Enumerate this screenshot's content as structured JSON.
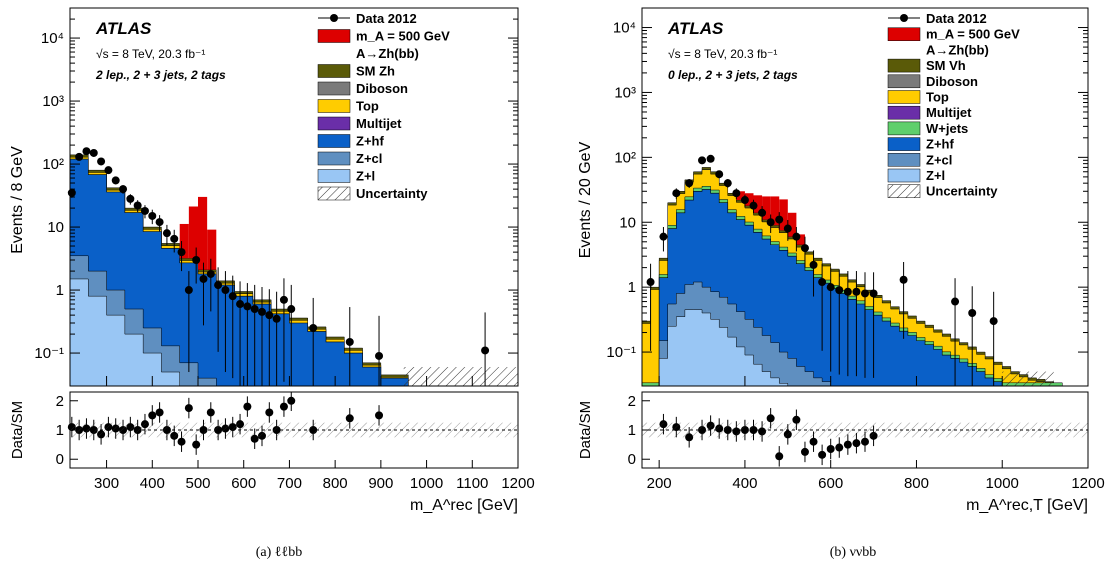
{
  "chart_data": [
    {
      "type": "area",
      "panel_caption": "(a) ℓℓbb",
      "experiment": "ATLAS",
      "energy_text": "√s = 8 TeV, 20.3 fb⁻¹",
      "selection": "2 lep., 2 + 3 jets, 2 tags",
      "xlabel": "m_A^rec [GeV]",
      "ylabel": "Events / 8 GeV",
      "ratio_ylabel": "Data/SM",
      "log_y": true,
      "xlim": [
        220,
        1200
      ],
      "ylim": [
        0.03,
        30000
      ],
      "ratio_ylim": [
        -0.3,
        2.3
      ],
      "x_ticks": [
        300,
        400,
        500,
        600,
        700,
        800,
        900,
        1000,
        1100,
        1200
      ],
      "y_ticks": [
        "10⁻¹",
        "1",
        "10",
        "10²",
        "10³",
        "10⁴"
      ],
      "ratio_ticks": [
        "0",
        "1",
        "2"
      ],
      "legend": [
        "Data 2012",
        "m_A = 500 GeV",
        "A→Zh(bb)",
        "SM Zh",
        "Diboson",
        "Top",
        "Multijet",
        "Z+hf",
        "Z+cl",
        "Z+l",
        "Uncertainty"
      ],
      "stack": {
        "x": [
          240,
          280,
          320,
          360,
          400,
          440,
          480,
          520,
          560,
          600,
          640,
          680,
          720,
          760,
          800,
          840,
          880,
          920,
          1000,
          1100
        ],
        "total": [
          140,
          80,
          42,
          20,
          10,
          5.5,
          3.2,
          2.1,
          1.4,
          0.95,
          0.7,
          0.5,
          0.36,
          0.26,
          0.18,
          0.12,
          0.07,
          0.045,
          0.03,
          0.03
        ],
        "z_hf": [
          120,
          68,
          36,
          17,
          8.5,
          4.6,
          2.7,
          1.8,
          1.2,
          0.8,
          0.6,
          0.42,
          0.3,
          0.22,
          0.15,
          0.1,
          0.06,
          0.04,
          0.03,
          0.03
        ],
        "z_cl": [
          3.5,
          2.0,
          1.0,
          0.5,
          0.25,
          0.13,
          0.07,
          0.04,
          0.03,
          0.03,
          0.03,
          0.03,
          0.03,
          0.03,
          0.03,
          0.03,
          0.03,
          0.03,
          0.03,
          0.03
        ],
        "z_l": [
          1.5,
          0.8,
          0.4,
          0.2,
          0.1,
          0.05,
          0.03,
          0.03,
          0.03,
          0.03,
          0.03,
          0.03,
          0.03,
          0.03,
          0.03,
          0.03,
          0.03,
          0.03,
          0.03,
          0.03
        ]
      },
      "signal": {
        "mass": 500,
        "x": [
          470,
          490,
          510,
          530
        ],
        "values": [
          8,
          18,
          28,
          7
        ]
      },
      "data_points": {
        "x": [
          224,
          240,
          256,
          272,
          288,
          304,
          320,
          336,
          352,
          368,
          384,
          400,
          416,
          432,
          448,
          464,
          480,
          496,
          512,
          528,
          544,
          560,
          576,
          592,
          608,
          624,
          640,
          656,
          672,
          688,
          704,
          752,
          832,
          896,
          1128
        ],
        "y": [
          35,
          130,
          160,
          150,
          110,
          80,
          55,
          40,
          28,
          22,
          18,
          15,
          12,
          8,
          6.5,
          4,
          1,
          3,
          1.5,
          1.8,
          1.2,
          1.0,
          0.8,
          0.6,
          0.55,
          0.5,
          0.45,
          0.4,
          0.35,
          0.7,
          0.5,
          0.25,
          0.15,
          0.09,
          0.11
        ]
      },
      "ratio": {
        "x": [
          224,
          240,
          256,
          272,
          288,
          304,
          320,
          336,
          352,
          368,
          384,
          400,
          416,
          432,
          448,
          464,
          480,
          496,
          512,
          528,
          544,
          560,
          576,
          592,
          608,
          624,
          640,
          656,
          672,
          688,
          704,
          752,
          832,
          896
        ],
        "y": [
          1.1,
          1.0,
          1.05,
          1.0,
          0.85,
          1.1,
          1.05,
          1.0,
          1.1,
          1.0,
          1.2,
          1.5,
          1.6,
          1.0,
          0.8,
          0.6,
          1.75,
          0.5,
          1.0,
          1.6,
          1.0,
          1.05,
          1.1,
          1.2,
          1.8,
          0.7,
          0.8,
          1.6,
          1.0,
          1.8,
          2.0,
          1.0,
          1.4,
          1.5
        ]
      }
    },
    {
      "type": "area",
      "panel_caption": "(b) ννbb",
      "experiment": "ATLAS",
      "energy_text": "√s = 8 TeV, 20.3 fb⁻¹",
      "selection": "0 lep., 2 + 3 jets, 2 tags",
      "xlabel": "m_A^rec,T [GeV]",
      "ylabel": "Events / 20 GeV",
      "ratio_ylabel": "Data/SM",
      "log_y": true,
      "xlim": [
        160,
        1200
      ],
      "ylim": [
        0.03,
        20000
      ],
      "ratio_ylim": [
        -0.3,
        2.3
      ],
      "x_ticks": [
        200,
        400,
        600,
        800,
        1000,
        1200
      ],
      "y_ticks": [
        "10⁻¹",
        "1",
        "10",
        "10²",
        "10³",
        "10⁴"
      ],
      "ratio_ticks": [
        "0",
        "1",
        "2"
      ],
      "legend": [
        "Data 2012",
        "m_A = 500 GeV",
        "A→Zh(bb)",
        "SM Vh",
        "Diboson",
        "Top",
        "Multijet",
        "W+jets",
        "Z+hf",
        "Z+cl",
        "Z+l",
        "Uncertainty"
      ],
      "stack": {
        "x": [
          170,
          190,
          210,
          230,
          250,
          270,
          290,
          310,
          330,
          350,
          370,
          390,
          410,
          430,
          450,
          470,
          490,
          510,
          530,
          550,
          570,
          590,
          610,
          630,
          650,
          670,
          690,
          710,
          730,
          750,
          770,
          790,
          810,
          830,
          850,
          870,
          890,
          910,
          930,
          950,
          970,
          990,
          1010,
          1030,
          1050,
          1070,
          1090,
          1110,
          1130
        ],
        "total": [
          0.3,
          1.0,
          2.8,
          20,
          30,
          45,
          60,
          70,
          60,
          40,
          28,
          22,
          18,
          14,
          11,
          9,
          7.5,
          6,
          4.5,
          3.5,
          2.8,
          2.3,
          1.9,
          1.6,
          1.3,
          1.1,
          0.9,
          0.75,
          0.62,
          0.5,
          0.42,
          0.36,
          0.3,
          0.26,
          0.22,
          0.19,
          0.16,
          0.14,
          0.12,
          0.1,
          0.085,
          0.07,
          0.06,
          0.05,
          0.045,
          0.04,
          0.038,
          0.035,
          0.033
        ],
        "z_hf": [
          0.03,
          0.03,
          1.4,
          8,
          14,
          22,
          30,
          32,
          28,
          20,
          14,
          11,
          9,
          7,
          5.5,
          4.5,
          3.7,
          3,
          2.3,
          1.8,
          1.4,
          1.15,
          0.95,
          0.8,
          0.65,
          0.55,
          0.45,
          0.37,
          0.3,
          0.25,
          0.21,
          0.18,
          0.15,
          0.13,
          0.11,
          0.09,
          0.08,
          0.07,
          0.06,
          0.05,
          0.04,
          0.035,
          0.03,
          0.03,
          0.03,
          0.03,
          0.03,
          0.03,
          0.03
        ],
        "z_cl": [
          0.03,
          0.03,
          0.15,
          0.55,
          0.8,
          1.1,
          1.2,
          1.0,
          0.85,
          0.7,
          0.55,
          0.42,
          0.32,
          0.24,
          0.18,
          0.14,
          0.1,
          0.08,
          0.06,
          0.05,
          0.04,
          0.035,
          0.03,
          0.03,
          0.03,
          0.03,
          0.03,
          0.03,
          0.03,
          0.03,
          0.03,
          0.03,
          0.03,
          0.03,
          0.03,
          0.03,
          0.03,
          0.03,
          0.03,
          0.03,
          0.03,
          0.03,
          0.03,
          0.03,
          0.03,
          0.03,
          0.03,
          0.03,
          0.03
        ],
        "z_l": [
          0.03,
          0.03,
          0.08,
          0.25,
          0.35,
          0.45,
          0.45,
          0.4,
          0.32,
          0.24,
          0.17,
          0.12,
          0.09,
          0.065,
          0.05,
          0.04,
          0.033,
          0.03,
          0.03,
          0.03,
          0.03,
          0.03,
          0.03,
          0.03,
          0.03,
          0.03,
          0.03,
          0.03,
          0.03,
          0.03,
          0.03,
          0.03,
          0.03,
          0.03,
          0.03,
          0.03,
          0.03,
          0.03,
          0.03,
          0.03,
          0.03,
          0.03,
          0.03,
          0.03,
          0.03,
          0.03,
          0.03,
          0.03,
          0.03
        ]
      },
      "signal": {
        "mass": 500,
        "x": [
          390,
          410,
          430,
          450,
          470,
          490,
          510,
          530
        ],
        "values": [
          8,
          10,
          12,
          14,
          16,
          15,
          8,
          2
        ]
      },
      "data_points": {
        "x": [
          180,
          210,
          240,
          270,
          300,
          320,
          340,
          360,
          380,
          400,
          420,
          440,
          460,
          480,
          500,
          520,
          540,
          560,
          580,
          600,
          620,
          640,
          660,
          680,
          700,
          770,
          890,
          930,
          980
        ],
        "y": [
          1.2,
          6,
          28,
          40,
          90,
          95,
          55,
          40,
          28,
          22,
          18,
          14,
          10,
          11,
          8,
          6,
          4,
          2.2,
          1.2,
          1.0,
          0.9,
          0.85,
          0.85,
          0.8,
          0.8,
          1.3,
          0.6,
          0.4,
          0.3
        ]
      },
      "ratio": {
        "x": [
          210,
          240,
          270,
          300,
          320,
          340,
          360,
          380,
          400,
          420,
          440,
          460,
          480,
          500,
          520,
          540,
          560,
          580,
          600,
          620,
          640,
          660,
          680,
          700
        ],
        "y": [
          1.2,
          1.1,
          0.75,
          1.0,
          1.15,
          1.05,
          1.0,
          0.95,
          1.0,
          1.0,
          0.95,
          1.4,
          0.1,
          0.85,
          1.35,
          0.25,
          0.6,
          0.15,
          0.35,
          0.4,
          0.5,
          0.55,
          0.6,
          0.8
        ]
      }
    }
  ],
  "colors": {
    "data": "#000000",
    "signal": "#dd0000",
    "sm_vh": "#5a5a08",
    "diboson": "#7a7a7a",
    "top": "#ffcc00",
    "multijet": "#6a2ea8",
    "w_jets": "#5fcf6c",
    "z_hf": "#0a60c8",
    "z_cl": "#5f8fc0",
    "z_l": "#99c6f4"
  }
}
